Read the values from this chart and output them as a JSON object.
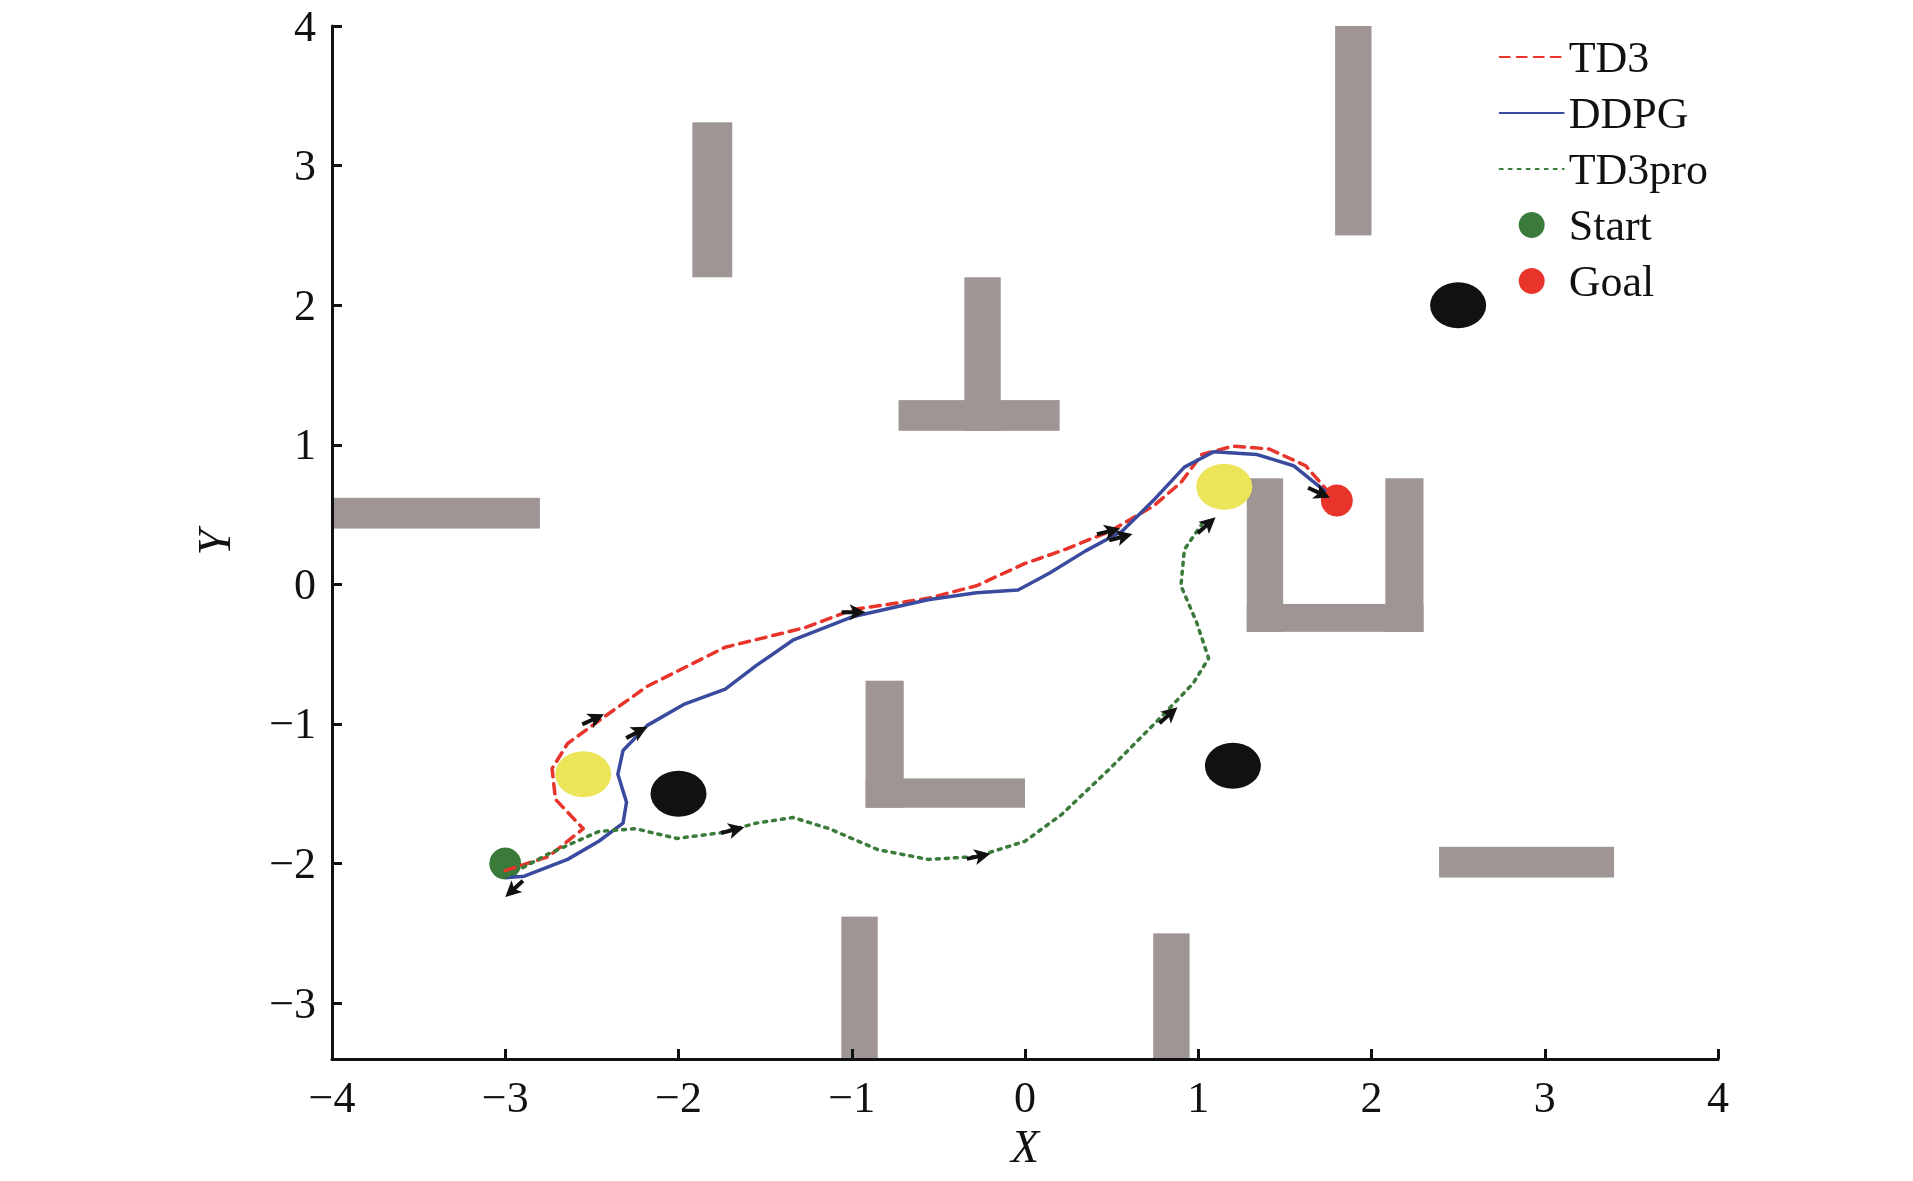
{
  "chart_data": {
    "type": "line",
    "xlabel": "X",
    "ylabel": "Y",
    "xlim": [
      -4,
      4
    ],
    "ylim": [
      -3.4,
      4
    ],
    "xticks": [
      -4,
      -3,
      -2,
      -1,
      0,
      1,
      2,
      3,
      4
    ],
    "yticks": [
      -3,
      -2,
      -1,
      0,
      1,
      2,
      3,
      4
    ],
    "grid": false,
    "legend": "top right",
    "marker": "none",
    "series": [
      {
        "name": "TD3",
        "color": "#e8342a",
        "line_style": "dashed",
        "x": [
          -3,
          -2.75,
          -2.55,
          -2.71,
          -2.73,
          -2.64,
          -2.43,
          -2.18,
          -1.73,
          -1.27,
          -0.99,
          -0.56,
          -0.28,
          0,
          0.21,
          0.49,
          0.74,
          0.9,
          1.02,
          1.2,
          1.41,
          1.62,
          1.76
        ],
        "values": [
          -2.05,
          -1.95,
          -1.75,
          -1.54,
          -1.32,
          -1.14,
          -0.95,
          -0.73,
          -0.45,
          -0.31,
          -0.18,
          -0.1,
          -0.01,
          0.15,
          0.24,
          0.38,
          0.56,
          0.73,
          0.93,
          0.99,
          0.97,
          0.85,
          0.65
        ]
      },
      {
        "name": "DDPG",
        "color": "#3a4a9e",
        "line_style": "solid",
        "x": [
          -2.99,
          -2.89,
          -2.64,
          -2.46,
          -2.32,
          -2.3,
          -2.35,
          -2.32,
          -2.18,
          -1.97,
          -1.73,
          -1.55,
          -1.34,
          -0.99,
          -0.56,
          -0.28,
          -0.04,
          0.14,
          0.35,
          0.56,
          0.74,
          0.92,
          1.09,
          1.34,
          1.55,
          1.73
        ],
        "values": [
          -2.1,
          -2.09,
          -1.97,
          -1.84,
          -1.71,
          -1.56,
          -1.36,
          -1.19,
          -1.01,
          -0.86,
          -0.75,
          -0.58,
          -0.4,
          -0.23,
          -0.11,
          -0.06,
          -0.04,
          0.08,
          0.24,
          0.38,
          0.6,
          0.84,
          0.95,
          0.93,
          0.85,
          0.67
        ]
      },
      {
        "name": "TD3pro",
        "color": "#3a7a3a",
        "line_style": "dotted",
        "x": [
          -2.99,
          -2.75,
          -2.46,
          -2.25,
          -2.01,
          -1.76,
          -1.55,
          -1.34,
          -1.13,
          -0.85,
          -0.56,
          -0.28,
          0,
          0.21,
          0.49,
          0.77,
          0.97,
          1.06,
          0.99,
          0.9,
          0.92,
          1.02
        ],
        "values": [
          -2.09,
          -1.93,
          -1.77,
          -1.75,
          -1.82,
          -1.78,
          -1.71,
          -1.67,
          -1.75,
          -1.9,
          -1.97,
          -1.95,
          -1.84,
          -1.65,
          -1.32,
          -0.97,
          -0.71,
          -0.53,
          -0.27,
          -0.01,
          0.25,
          0.43
        ]
      },
      {
        "name": "Start",
        "type": "scatter",
        "marker": "circle",
        "color": "#3a7a3a",
        "x": [
          -3
        ],
        "values": [
          -2
        ]
      },
      {
        "name": "Goal",
        "type": "scatter",
        "marker": "circle",
        "color": "#e8342a",
        "x": [
          1.8
        ],
        "values": [
          0.6
        ]
      }
    ]
  }
}
